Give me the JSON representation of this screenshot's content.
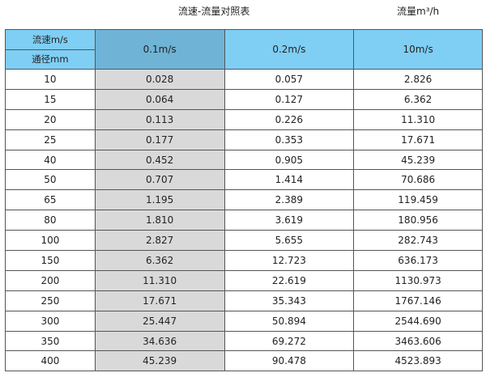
{
  "title": "流速-流量对照表",
  "unit": "流量m³/h",
  "header": {
    "velocity_label": "流速m/s",
    "diameter_label": "通径mm",
    "columns": [
      "0.1m/s",
      "0.2m/s",
      "10m/s"
    ]
  },
  "colors": {
    "header": "#7fcef4",
    "highlight_header": "#6fb3d6",
    "highlight_column": "#d9d9d9"
  },
  "rows": [
    [
      "10",
      "0.028",
      "0.057",
      "2.826"
    ],
    [
      "15",
      "0.064",
      "0.127",
      "6.362"
    ],
    [
      "20",
      "0.113",
      "0.226",
      "11.310"
    ],
    [
      "25",
      "0.177",
      "0.353",
      "17.671"
    ],
    [
      "40",
      "0.452",
      "0.905",
      "45.239"
    ],
    [
      "50",
      "0.707",
      "1.414",
      "70.686"
    ],
    [
      "65",
      "1.195",
      "2.389",
      "119.459"
    ],
    [
      "80",
      "1.810",
      "3.619",
      "180.956"
    ],
    [
      "100",
      "2.827",
      "5.655",
      "282.743"
    ],
    [
      "150",
      "6.362",
      "12.723",
      "636.173"
    ],
    [
      "200",
      "11.310",
      "22.619",
      "1130.973"
    ],
    [
      "250",
      "17.671",
      "35.343",
      "1767.146"
    ],
    [
      "300",
      "25.447",
      "50.894",
      "2544.690"
    ],
    [
      "350",
      "34.636",
      "69.272",
      "3463.606"
    ],
    [
      "400",
      "45.239",
      "90.478",
      "4523.893"
    ]
  ]
}
